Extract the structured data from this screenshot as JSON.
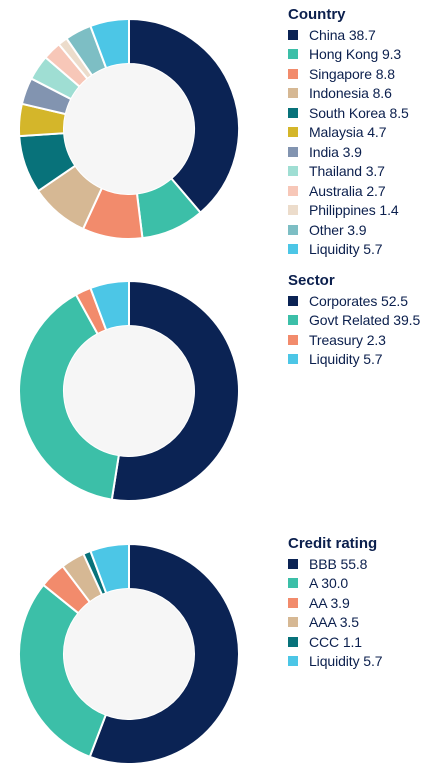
{
  "chart_data": [
    {
      "type": "pie",
      "title": "Country",
      "donut": true,
      "legend": "right",
      "categories": [
        "China",
        "Hong Kong",
        "Singapore",
        "Indonesia",
        "South Korea",
        "Malaysia",
        "India",
        "Thailand",
        "Australia",
        "Philippines",
        "Other",
        "Liquidity"
      ],
      "values": [
        38.7,
        9.3,
        8.8,
        8.6,
        8.5,
        4.7,
        3.9,
        3.7,
        2.7,
        1.4,
        3.9,
        5.7
      ],
      "colors": [
        "#0b2354",
        "#3cbfa8",
        "#f28b6c",
        "#d6b894",
        "#08727a",
        "#d4b62a",
        "#8294b0",
        "#9fded3",
        "#f7c7b8",
        "#ecdccb",
        "#7dbec4",
        "#4cc6e6"
      ],
      "labels": [
        "China 38.7",
        "Hong Kong 9.3",
        "Singapore 8.8",
        "Indonesia 8.6",
        "South Korea 8.5",
        "Malaysia 4.7",
        "India 3.9",
        "Thailand 3.7",
        "Australia 2.7",
        "Philippines 1.4",
        "Other 3.9",
        "Liquidity 5.7"
      ]
    },
    {
      "type": "pie",
      "title": "Sector",
      "donut": true,
      "legend": "right",
      "categories": [
        "Corporates",
        "Govt Related",
        "Treasury",
        "Liquidity"
      ],
      "values": [
        52.5,
        39.5,
        2.3,
        5.7
      ],
      "colors": [
        "#0b2354",
        "#3cbfa8",
        "#f28b6c",
        "#4cc6e6"
      ],
      "labels": [
        "Corporates 52.5",
        "Govt Related 39.5",
        "Treasury 2.3",
        "Liquidity 5.7"
      ]
    },
    {
      "type": "pie",
      "title": "Credit rating",
      "donut": true,
      "legend": "right",
      "categories": [
        "BBB",
        "A",
        "AA",
        "AAA",
        "CCC",
        "Liquidity"
      ],
      "values": [
        55.8,
        30.0,
        3.9,
        3.5,
        1.1,
        5.7
      ],
      "colors": [
        "#0b2354",
        "#3cbfa8",
        "#f28b6c",
        "#d6b894",
        "#08727a",
        "#4cc6e6"
      ],
      "labels": [
        "BBB 55.8",
        "A 30.0",
        "AA 3.9",
        "AAA 3.5",
        "CCC 1.1",
        "Liquidity 5.7"
      ]
    }
  ]
}
